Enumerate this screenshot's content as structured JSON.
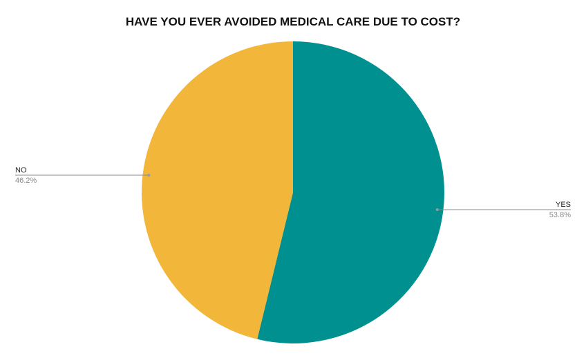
{
  "chart_data": {
    "type": "pie",
    "title": "HAVE YOU EVER AVOIDED MEDICAL CARE DUE TO COST?",
    "slices": [
      {
        "label": "YES",
        "value": 53.8,
        "display": "53.8%",
        "color": "#009090"
      },
      {
        "label": "NO",
        "value": 46.2,
        "display": "46.2%",
        "color": "#f2b63a"
      }
    ],
    "start_angle": "12 o'clock",
    "direction": "clockwise",
    "legend": "none"
  }
}
